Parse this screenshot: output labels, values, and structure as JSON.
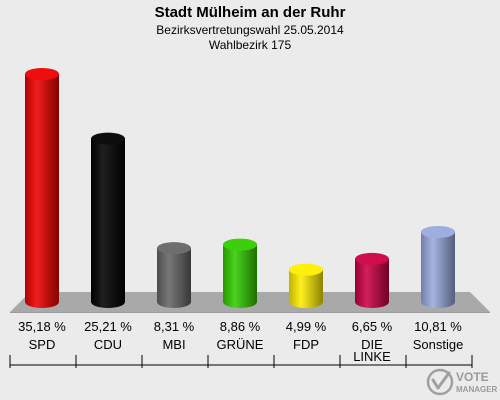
{
  "chart_data": {
    "type": "bar",
    "title": "Stadt Mülheim an der Ruhr",
    "subtitle_line1": "Bezirksvertretungswahl 25.05.2014",
    "subtitle_line2": "Wahlbezirk 175",
    "unit": "%",
    "ylim": [
      0,
      40
    ],
    "grid": false,
    "categories": [
      "SPD",
      "CDU",
      "MBI",
      "GRÜNE",
      "FDP",
      "DIE LINKE",
      "Sonstige"
    ],
    "category_lines": [
      [
        "SPD"
      ],
      [
        "CDU"
      ],
      [
        "MBI"
      ],
      [
        "GRÜNE"
      ],
      [
        "FDP"
      ],
      [
        "DIE",
        "LINKE"
      ],
      [
        "Sonstige"
      ]
    ],
    "values": [
      35.18,
      25.21,
      8.31,
      8.86,
      4.99,
      6.65,
      10.81
    ],
    "value_labels": [
      "35,18 %",
      "25,21 %",
      "8,31 %",
      "8,86 %",
      "4,99 %",
      "6,65 %",
      "10,81 %"
    ],
    "colors": [
      "#ee0000",
      "#000000",
      "#666666",
      "#33cc00",
      "#ffee00",
      "#cc0044",
      "#99aadd"
    ]
  },
  "logo": {
    "line1": "VOTE",
    "line2": "MANAGER",
    "icon": "vote-manager-logo-icon"
  }
}
